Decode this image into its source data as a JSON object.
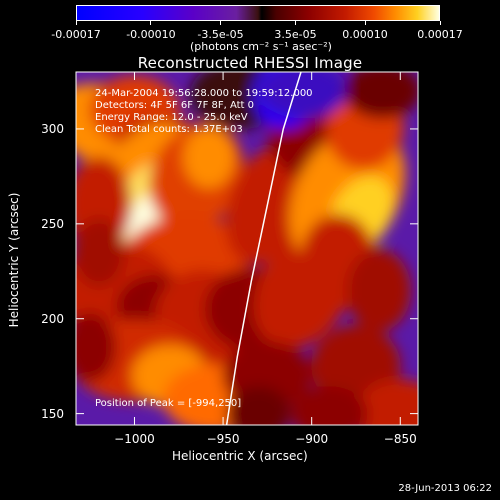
{
  "colorbar": {
    "ticks": [
      "-0.00017",
      "-0.00010",
      "-3.5e-05",
      "3.5e-05",
      "0.00010",
      "0.00017"
    ],
    "tick_values": [
      -0.00017,
      -0.0001,
      -3.5e-05,
      3.5e-05,
      0.0001,
      0.00017
    ],
    "range": [
      -0.00017,
      0.00017
    ],
    "units": "(photons cm⁻² s⁻¹ asec⁻²)"
  },
  "chart_data": {
    "type": "heatmap",
    "title": "Reconstructed RHESSI Image",
    "xlabel": "Heliocentric X (arcsec)",
    "ylabel": "Heliocentric Y (arcsec)",
    "xlim": [
      -1033,
      -840
    ],
    "ylim": [
      144,
      330
    ],
    "x_ticks": [
      -1000,
      -950,
      -900,
      -850
    ],
    "x_tick_labels": [
      "−1000",
      "−950",
      "−900",
      "−850"
    ],
    "y_ticks": [
      150,
      200,
      250,
      300
    ],
    "y_tick_labels": [
      "150",
      "200",
      "250",
      "300"
    ],
    "annotations": [
      "24-Mar-2004 19:56:28.000 to 19:59:12.000",
      "Detectors: 4F 5F 6F 7F 8F, Att 0",
      "Energy Range: 12.0 - 25.0 keV",
      "Clean     Total counts: 1.37E+03"
    ],
    "peak_label": "Position of Peak = [-994,250]",
    "peak_position": [
      -994,
      250
    ],
    "limb_curve": {
      "x": [
        -948,
        -942,
        -934,
        -925,
        -916,
        -906
      ],
      "y": [
        144,
        180,
        220,
        260,
        300,
        330
      ]
    },
    "colormap": "red-temperature diverging"
  },
  "footer": {
    "timestamp": "28-Jun-2013 06:22"
  }
}
